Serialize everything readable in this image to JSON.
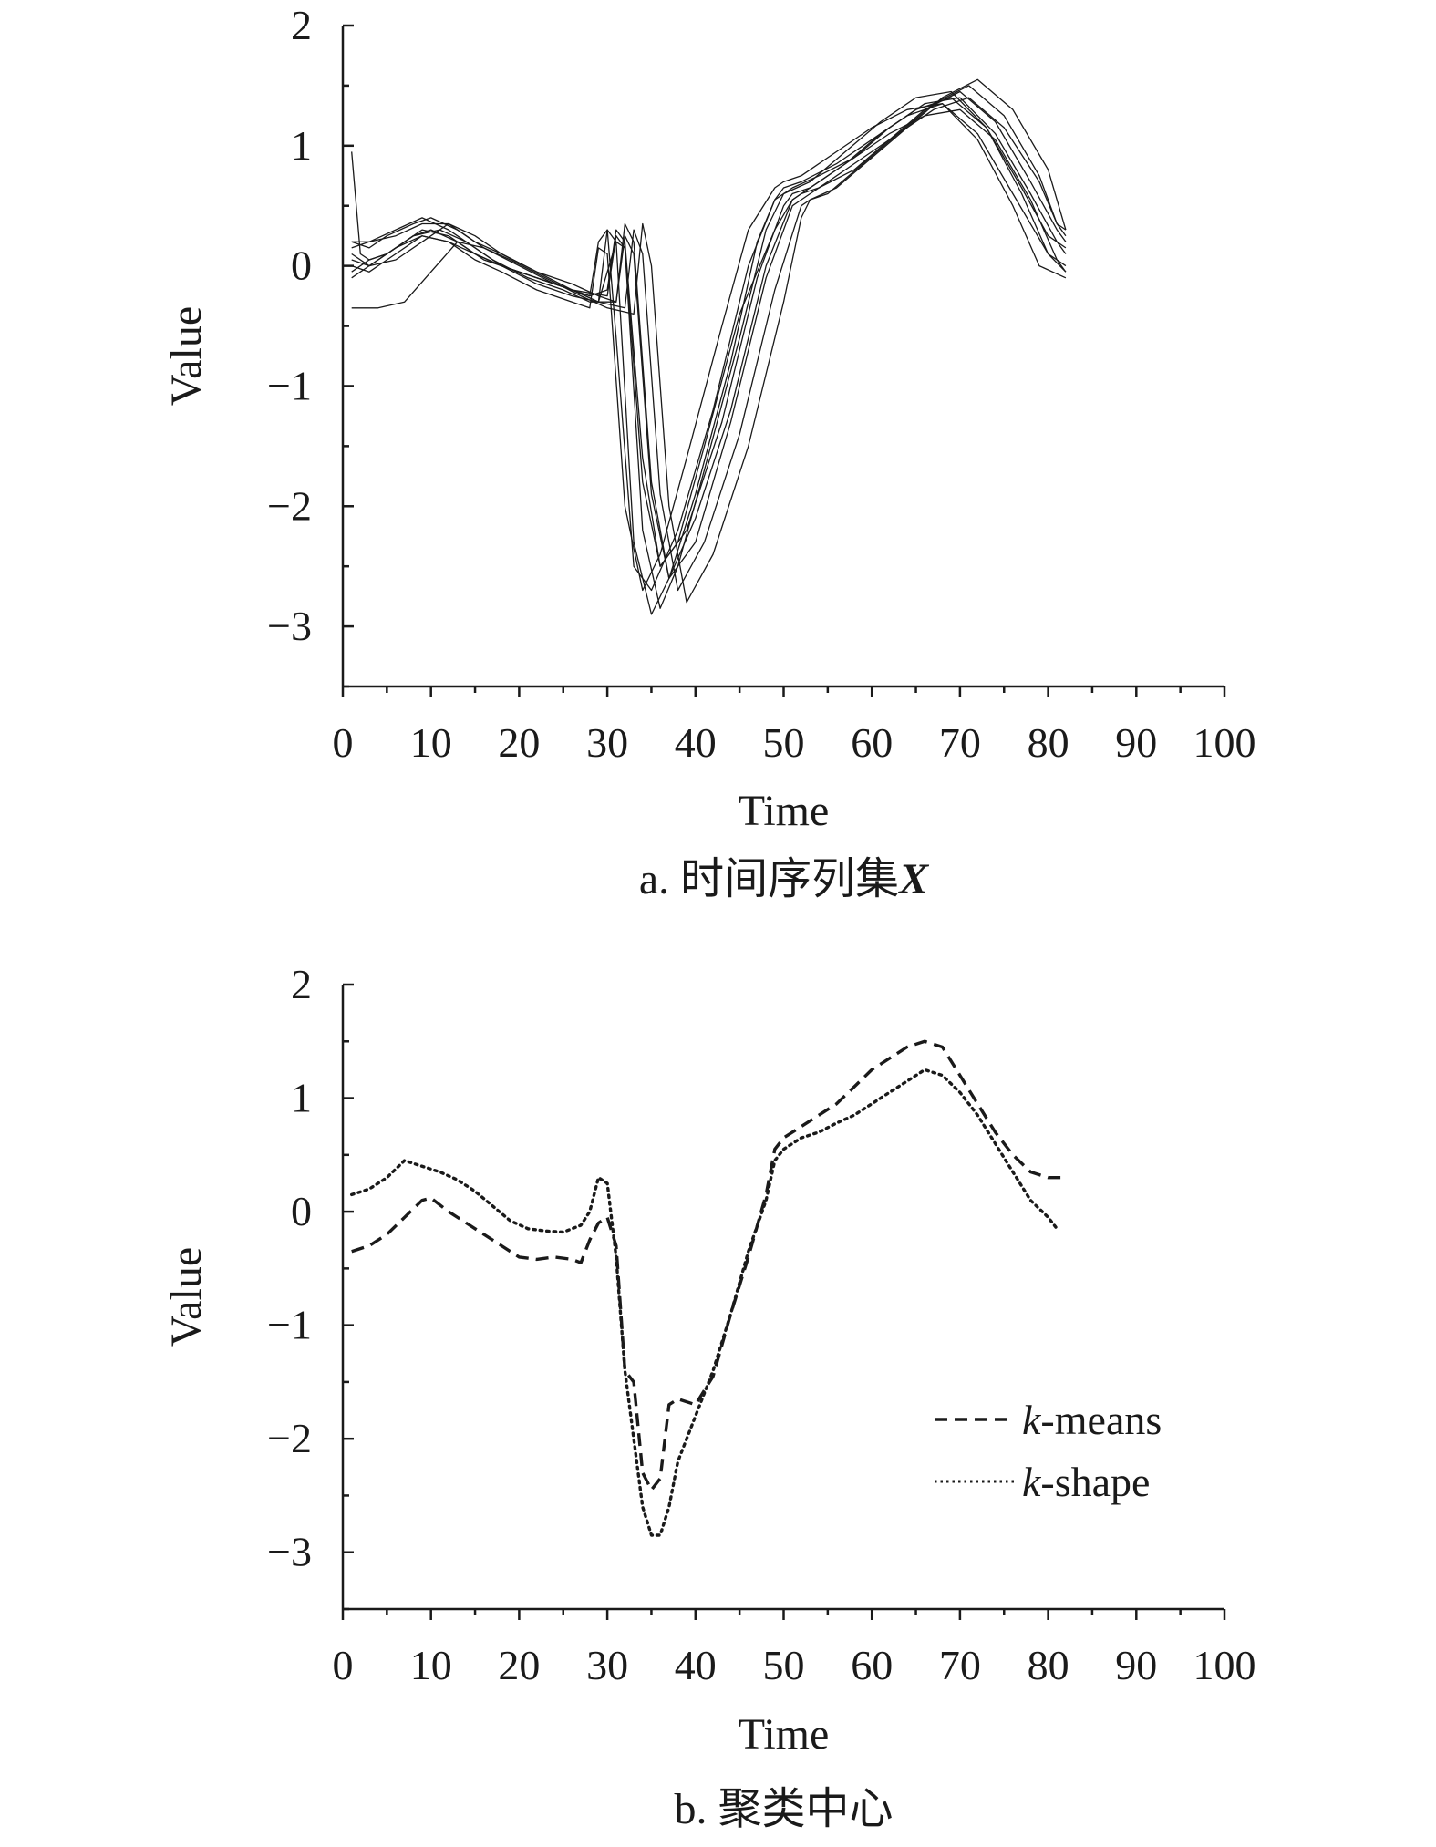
{
  "chart_data": [
    {
      "type": "line",
      "caption": "a. 时间序列集X",
      "caption_prefix": "a. 时间序列集",
      "caption_symbol": "X",
      "xlabel": "Time",
      "ylabel": "Value",
      "xlim": [
        0,
        100
      ],
      "ylim": [
        -3.5,
        2
      ],
      "xticks": [
        0,
        10,
        20,
        30,
        40,
        50,
        60,
        70,
        80,
        90,
        100
      ],
      "yticks": [
        2,
        1,
        0,
        -1,
        -2,
        -3
      ],
      "ytick_labels": [
        "2",
        "1",
        "0",
        "−1",
        "−2",
        "−3"
      ],
      "legend": null,
      "grid": false,
      "series": [
        {
          "style": "solid",
          "x": [
            1,
            2,
            3,
            5,
            8,
            10,
            13,
            16,
            20,
            24,
            28,
            29,
            30,
            31,
            33,
            35,
            38,
            42,
            46,
            49,
            50,
            52,
            56,
            60,
            64,
            68,
            72,
            76,
            80,
            82
          ],
          "y": [
            0.95,
            0.1,
            0.05,
            0.1,
            0.25,
            0.3,
            0.2,
            0.05,
            -0.05,
            -0.15,
            -0.25,
            0.2,
            0.3,
            -0.6,
            -2.5,
            -2.7,
            -2.2,
            -1.2,
            0.0,
            0.55,
            0.65,
            0.7,
            0.85,
            1.05,
            1.25,
            1.35,
            1.1,
            0.6,
            0.1,
            -0.05
          ]
        },
        {
          "style": "solid",
          "x": [
            1,
            3,
            5,
            8,
            10,
            13,
            16,
            20,
            24,
            28,
            30,
            31,
            32,
            34,
            36,
            39,
            43,
            47,
            50,
            51,
            53,
            57,
            61,
            65,
            69,
            73,
            77,
            80,
            82
          ],
          "y": [
            0.2,
            0.15,
            0.25,
            0.35,
            0.4,
            0.3,
            0.15,
            0.0,
            -0.15,
            -0.25,
            -0.2,
            0.3,
            0.2,
            -1.6,
            -2.5,
            -2.2,
            -1.3,
            -0.1,
            0.5,
            0.6,
            0.65,
            0.85,
            1.1,
            1.3,
            1.4,
            1.15,
            0.65,
            0.25,
            0.15
          ]
        },
        {
          "style": "solid",
          "x": [
            1,
            3,
            5,
            8,
            11,
            14,
            17,
            21,
            25,
            28,
            31,
            32,
            33,
            35,
            37,
            40,
            44,
            48,
            51,
            52,
            54,
            58,
            62,
            66,
            70,
            74,
            78,
            81,
            82
          ],
          "y": [
            -0.05,
            0.05,
            0.1,
            0.25,
            0.3,
            0.2,
            0.05,
            -0.1,
            -0.2,
            -0.3,
            -0.3,
            0.35,
            0.2,
            -1.8,
            -2.6,
            -2.1,
            -1.2,
            0.0,
            0.55,
            0.6,
            0.65,
            0.8,
            1.05,
            1.3,
            1.45,
            1.2,
            0.7,
            0.3,
            0.2
          ]
        },
        {
          "style": "solid",
          "x": [
            1,
            3,
            6,
            9,
            12,
            15,
            18,
            22,
            26,
            29,
            32,
            33,
            34,
            36,
            38,
            41,
            45,
            49,
            52,
            53,
            55,
            59,
            63,
            67,
            71,
            75,
            79,
            81,
            82
          ],
          "y": [
            0.1,
            0.0,
            0.05,
            0.2,
            0.35,
            0.25,
            0.1,
            -0.05,
            -0.2,
            -0.3,
            -0.35,
            0.3,
            0.1,
            -1.9,
            -2.7,
            -2.3,
            -1.4,
            -0.2,
            0.5,
            0.55,
            0.6,
            0.85,
            1.1,
            1.35,
            1.5,
            1.25,
            0.75,
            0.35,
            0.25
          ]
        },
        {
          "style": "solid",
          "x": [
            1,
            4,
            7,
            10,
            13,
            16,
            19,
            23,
            27,
            30,
            33,
            34,
            35,
            37,
            39,
            42,
            46,
            50,
            52,
            53,
            56,
            60,
            64,
            68,
            72,
            76,
            80,
            82
          ],
          "y": [
            -0.35,
            -0.35,
            -0.3,
            -0.05,
            0.2,
            0.15,
            0.05,
            -0.1,
            -0.25,
            -0.35,
            -0.4,
            0.35,
            0.0,
            -2.0,
            -2.8,
            -2.4,
            -1.5,
            -0.3,
            0.4,
            0.55,
            0.65,
            0.9,
            1.15,
            1.4,
            1.55,
            1.3,
            0.8,
            0.3
          ]
        },
        {
          "style": "solid",
          "x": [
            1,
            3,
            6,
            9,
            12,
            15,
            18,
            22,
            26,
            30,
            31,
            32,
            34,
            36,
            38,
            41,
            45,
            48,
            50,
            51,
            54,
            58,
            62,
            66,
            70,
            74,
            78,
            81,
            82
          ],
          "y": [
            0.05,
            0.0,
            0.15,
            0.3,
            0.25,
            0.1,
            0.0,
            -0.1,
            -0.2,
            -0.25,
            0.25,
            0.15,
            -2.2,
            -2.85,
            -2.5,
            -1.7,
            -0.6,
            0.3,
            0.6,
            0.65,
            0.75,
            0.9,
            1.1,
            1.25,
            1.3,
            1.05,
            0.55,
            0.05,
            -0.05
          ]
        },
        {
          "style": "solid",
          "x": [
            1,
            3,
            6,
            9,
            12,
            15,
            18,
            22,
            26,
            29,
            30,
            31,
            33,
            35,
            37,
            40,
            44,
            47,
            49,
            50,
            53,
            57,
            61,
            65,
            69,
            73,
            77,
            80,
            82
          ],
          "y": [
            0.15,
            0.2,
            0.3,
            0.4,
            0.3,
            0.15,
            0.0,
            -0.15,
            -0.25,
            -0.3,
            0.3,
            0.2,
            -2.3,
            -2.9,
            -2.6,
            -1.9,
            -0.8,
            0.2,
            0.55,
            0.6,
            0.7,
            0.95,
            1.2,
            1.4,
            1.45,
            1.15,
            0.6,
            0.1,
            0.0
          ]
        },
        {
          "style": "solid",
          "x": [
            1,
            3,
            6,
            9,
            12,
            15,
            18,
            22,
            26,
            28,
            29,
            30,
            32,
            34,
            36,
            39,
            43,
            46,
            49,
            50,
            52,
            56,
            60,
            64,
            68,
            72,
            76,
            79,
            82
          ],
          "y": [
            0.0,
            -0.05,
            0.1,
            0.25,
            0.2,
            0.05,
            -0.05,
            -0.2,
            -0.3,
            -0.35,
            0.15,
            0.1,
            -2.0,
            -2.7,
            -2.4,
            -1.6,
            -0.5,
            0.3,
            0.65,
            0.7,
            0.75,
            0.95,
            1.15,
            1.3,
            1.35,
            1.05,
            0.5,
            0.0,
            -0.1
          ]
        },
        {
          "style": "solid",
          "x": [
            1,
            3,
            6,
            9,
            12,
            15,
            18,
            22,
            26,
            29,
            31,
            32,
            33,
            35,
            37,
            40,
            44,
            48,
            51,
            52,
            55,
            59,
            63,
            67,
            71,
            75,
            79,
            81,
            82
          ],
          "y": [
            0.2,
            0.2,
            0.25,
            0.35,
            0.35,
            0.2,
            0.1,
            -0.05,
            -0.15,
            -0.25,
            -0.3,
            0.25,
            0.1,
            -1.9,
            -2.6,
            -2.3,
            -1.3,
            -0.1,
            0.5,
            0.55,
            0.7,
            0.9,
            1.1,
            1.3,
            1.4,
            1.15,
            0.7,
            0.35,
            0.3
          ]
        },
        {
          "style": "solid",
          "x": [
            1,
            3,
            6,
            9,
            12,
            15,
            18,
            22,
            26,
            29,
            31,
            32,
            34,
            36,
            38,
            41,
            45,
            49,
            51,
            52,
            54,
            58,
            62,
            66,
            70,
            74,
            78,
            81,
            82
          ],
          "y": [
            -0.1,
            0.0,
            0.15,
            0.25,
            0.2,
            0.1,
            0.0,
            -0.1,
            -0.2,
            -0.3,
            0.2,
            0.15,
            -1.8,
            -2.5,
            -2.3,
            -1.5,
            -0.4,
            0.3,
            0.55,
            0.6,
            0.7,
            0.9,
            1.15,
            1.35,
            1.4,
            1.1,
            0.6,
            0.2,
            0.1
          ]
        }
      ]
    },
    {
      "type": "line",
      "caption": "b. 聚类中心",
      "xlabel": "Time",
      "ylabel": "Value",
      "xlim": [
        0,
        100
      ],
      "ylim": [
        -3.5,
        2
      ],
      "xticks": [
        0,
        10,
        20,
        30,
        40,
        50,
        60,
        70,
        80,
        90,
        100
      ],
      "yticks": [
        2,
        1,
        0,
        -1,
        -2,
        -3
      ],
      "ytick_labels": [
        "2",
        "1",
        "0",
        "−1",
        "−2",
        "−3"
      ],
      "grid": false,
      "legend": {
        "placement": "lower-right"
      },
      "series": [
        {
          "name": "k-means",
          "legend_italic": "k",
          "legend_rest": "-means",
          "style": "dashed",
          "x": [
            1,
            3,
            5,
            7,
            9,
            10,
            12,
            14,
            16,
            18,
            20,
            22,
            24,
            26,
            27,
            28,
            29,
            30,
            31,
            32,
            33,
            34,
            35,
            36,
            37,
            38,
            40,
            42,
            44,
            46,
            48,
            49,
            50,
            52,
            54,
            56,
            58,
            60,
            62,
            64,
            66,
            68,
            70,
            72,
            74,
            76,
            78,
            80,
            82
          ],
          "y": [
            -0.35,
            -0.3,
            -0.2,
            -0.05,
            0.1,
            0.12,
            0.0,
            -0.1,
            -0.2,
            -0.3,
            -0.4,
            -0.42,
            -0.4,
            -0.42,
            -0.45,
            -0.25,
            -0.1,
            -0.05,
            -0.3,
            -1.4,
            -1.5,
            -2.3,
            -2.45,
            -2.35,
            -1.7,
            -1.65,
            -1.7,
            -1.45,
            -0.9,
            -0.4,
            0.15,
            0.55,
            0.65,
            0.75,
            0.85,
            0.95,
            1.1,
            1.25,
            1.35,
            1.45,
            1.5,
            1.45,
            1.2,
            0.95,
            0.7,
            0.5,
            0.35,
            0.3,
            0.3
          ]
        },
        {
          "name": "k-shape",
          "legend_italic": "k",
          "legend_rest": "-shape",
          "style": "dotted",
          "x": [
            1,
            3,
            5,
            7,
            9,
            11,
            13,
            15,
            17,
            19,
            21,
            23,
            25,
            27,
            28,
            29,
            30,
            31,
            32,
            33,
            34,
            35,
            36,
            37,
            38,
            40,
            42,
            44,
            46,
            48,
            49,
            50,
            52,
            54,
            56,
            58,
            60,
            62,
            64,
            66,
            68,
            70,
            72,
            74,
            76,
            78,
            80,
            81
          ],
          "y": [
            0.15,
            0.2,
            0.3,
            0.45,
            0.4,
            0.35,
            0.28,
            0.18,
            0.05,
            -0.08,
            -0.15,
            -0.17,
            -0.18,
            -0.12,
            0.0,
            0.3,
            0.25,
            -0.4,
            -1.4,
            -2.0,
            -2.6,
            -2.85,
            -2.85,
            -2.6,
            -2.2,
            -1.8,
            -1.4,
            -0.9,
            -0.35,
            0.1,
            0.45,
            0.55,
            0.65,
            0.7,
            0.78,
            0.85,
            0.95,
            1.05,
            1.15,
            1.25,
            1.2,
            1.05,
            0.85,
            0.6,
            0.35,
            0.1,
            -0.05,
            -0.15
          ]
        }
      ]
    }
  ]
}
